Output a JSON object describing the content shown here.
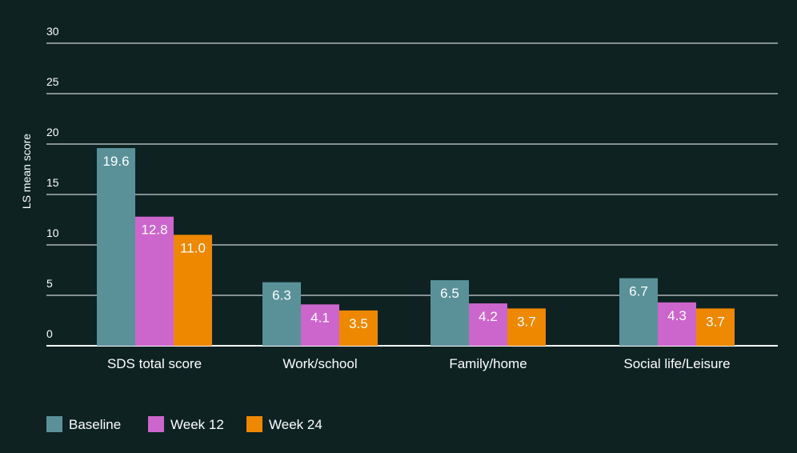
{
  "chart_data": {
    "type": "bar",
    "title": "",
    "xlabel": "",
    "ylabel": "LS mean score",
    "ylim": [
      0,
      30
    ],
    "yticks": [
      0,
      5,
      10,
      15,
      20,
      25,
      30
    ],
    "grid": true,
    "legend_position": "bottom-left",
    "categories": [
      "SDS total score",
      "Work/school",
      "Family/home",
      "Social life/Leisure"
    ],
    "series": [
      {
        "name": "Baseline",
        "color": "#5a9199",
        "values": [
          19.6,
          6.3,
          6.5,
          6.7
        ],
        "labels": [
          "19.6",
          "6.3",
          "6.5",
          "6.7"
        ]
      },
      {
        "name": "Week 12",
        "color": "#cc66cc",
        "values": [
          12.8,
          4.1,
          4.2,
          4.3
        ],
        "labels": [
          "12.8",
          "4.1",
          "4.2",
          "4.3"
        ]
      },
      {
        "name": "Week 24",
        "color": "#ee8800",
        "values": [
          11.0,
          3.5,
          3.7,
          3.7
        ],
        "labels": [
          "11.0",
          "3.5",
          "3.7",
          "3.7"
        ]
      }
    ]
  },
  "colors": {
    "background": "#0e2222",
    "gridline": "#ffffff",
    "text": "#ffffff"
  }
}
